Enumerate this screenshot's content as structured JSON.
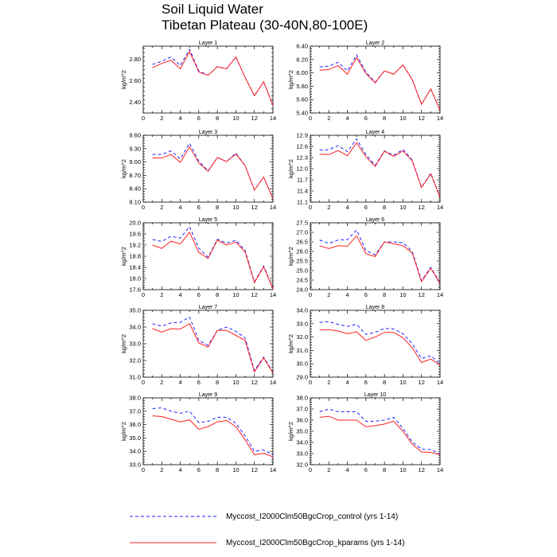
{
  "chart_data": {
    "type": "line",
    "title": [
      "Soil Liquid Water",
      "Tibetan Plateau (30-40N,80-100E)"
    ],
    "ylabel": "kg/m^2",
    "x": [
      1,
      2,
      3,
      4,
      5,
      6,
      7,
      8,
      9,
      10,
      11,
      12,
      13,
      14
    ],
    "xticks": [
      "0",
      "2",
      "4",
      "6",
      "8",
      "10",
      "12",
      "14"
    ],
    "xlim": [
      0,
      14
    ],
    "legend": {
      "placement": "bottom-center",
      "entries": [
        {
          "name": "Myccost_I2000Clm50BgcCrop_control (yrs 1-14)",
          "color": "#2020ff",
          "style": "dashed"
        },
        {
          "name": "Myccost_I2000Clm50BgcCrop_kparams (yrs 1-14)",
          "color": "#ff2020",
          "style": "solid"
        }
      ]
    },
    "panels": [
      {
        "title": "Layer 1",
        "ylim": [
          2.3,
          2.92
        ],
        "yticks": [
          "2.40",
          "2.60",
          "2.80"
        ],
        "ytick_values": [
          2.4,
          2.6,
          2.8
        ],
        "series": [
          {
            "name": "Myccost_I2000Clm50BgcCrop_control (yrs 1-14)",
            "values": [
              2.75,
              2.78,
              2.82,
              2.74,
              2.89,
              2.69,
              2.65,
              2.73,
              2.71,
              2.82,
              2.63,
              2.46,
              2.59,
              2.37
            ]
          },
          {
            "name": "Myccost_I2000Clm50BgcCrop_kparams (yrs 1-14)",
            "values": [
              2.72,
              2.76,
              2.79,
              2.71,
              2.87,
              2.68,
              2.65,
              2.73,
              2.71,
              2.82,
              2.63,
              2.46,
              2.59,
              2.37
            ]
          }
        ]
      },
      {
        "title": "Layer 2",
        "ylim": [
          5.4,
          6.4
        ],
        "yticks": [
          "5.40",
          "5.60",
          "5.80",
          "6.00",
          "6.20",
          "6.40"
        ],
        "ytick_values": [
          5.4,
          5.6,
          5.8,
          6.0,
          6.2,
          6.4
        ],
        "series": [
          {
            "name": "Myccost_I2000Clm50BgcCrop_control (yrs 1-14)",
            "values": [
              6.09,
              6.1,
              6.16,
              6.03,
              6.27,
              6.01,
              5.86,
              6.03,
              5.98,
              6.12,
              5.9,
              5.53,
              5.76,
              5.44
            ]
          },
          {
            "name": "Myccost_I2000Clm50BgcCrop_kparams (yrs 1-14)",
            "values": [
              6.04,
              6.05,
              6.11,
              5.98,
              6.23,
              5.99,
              5.85,
              6.03,
              5.98,
              6.12,
              5.9,
              5.53,
              5.76,
              5.44
            ]
          }
        ]
      },
      {
        "title": "Layer 3",
        "ylim": [
          8.1,
          9.6
        ],
        "yticks": [
          "8.10",
          "8.40",
          "8.70",
          "9.00",
          "9.30",
          "9.60"
        ],
        "ytick_values": [
          8.1,
          8.4,
          8.7,
          9.0,
          9.3,
          9.6
        ],
        "series": [
          {
            "name": "Myccost_I2000Clm50BgcCrop_control (yrs 1-14)",
            "values": [
              9.17,
              9.17,
              9.25,
              9.07,
              9.42,
              9.02,
              8.8,
              9.1,
              9.01,
              9.2,
              8.92,
              8.37,
              8.66,
              8.18
            ]
          },
          {
            "name": "Myccost_I2000Clm50BgcCrop_kparams (yrs 1-14)",
            "values": [
              9.09,
              9.09,
              9.17,
              8.99,
              9.34,
              8.98,
              8.79,
              9.1,
              9.01,
              9.18,
              8.92,
              8.37,
              8.66,
              8.18
            ]
          }
        ]
      },
      {
        "title": "Layer 4",
        "ylim": [
          11.1,
          12.9
        ],
        "yticks": [
          "11.1",
          "11.4",
          "11.7",
          "12.0",
          "12.3",
          "12.6",
          "12.9"
        ],
        "ytick_values": [
          11.1,
          11.4,
          11.7,
          12.0,
          12.3,
          12.6,
          12.9
        ],
        "series": [
          {
            "name": "Myccost_I2000Clm50BgcCrop_control (yrs 1-14)",
            "values": [
              12.5,
              12.51,
              12.62,
              12.46,
              12.8,
              12.38,
              12.09,
              12.48,
              12.36,
              12.52,
              12.23,
              11.5,
              11.88,
              11.23
            ]
          },
          {
            "name": "Myccost_I2000Clm50BgcCrop_kparams (yrs 1-14)",
            "values": [
              12.39,
              12.38,
              12.49,
              12.35,
              12.7,
              12.32,
              12.06,
              12.47,
              12.33,
              12.48,
              12.21,
              11.49,
              11.86,
              11.23
            ]
          }
        ]
      },
      {
        "title": "Layer 5",
        "ylim": [
          17.6,
          20.0
        ],
        "yticks": [
          "17.6",
          "18.0",
          "18.4",
          "18.8",
          "19.2",
          "19.6",
          "20.0"
        ],
        "ytick_values": [
          17.6,
          18.0,
          18.4,
          18.8,
          19.2,
          19.6,
          20.0
        ],
        "series": [
          {
            "name": "Myccost_I2000Clm50BgcCrop_control (yrs 1-14)",
            "values": [
              19.4,
              19.33,
              19.52,
              19.45,
              19.86,
              19.09,
              18.76,
              19.41,
              19.27,
              19.37,
              19.0,
              17.88,
              18.45,
              17.66
            ]
          },
          {
            "name": "Myccost_I2000Clm50BgcCrop_kparams (yrs 1-14)",
            "values": [
              19.2,
              19.08,
              19.34,
              19.24,
              19.66,
              18.94,
              18.72,
              19.38,
              19.2,
              19.31,
              18.95,
              17.85,
              18.42,
              17.63
            ]
          }
        ]
      },
      {
        "title": "Layer 6",
        "ylim": [
          24.0,
          27.5
        ],
        "yticks": [
          "24.0",
          "24.5",
          "25.0",
          "25.5",
          "26.0",
          "26.5",
          "27.0",
          "27.5"
        ],
        "ytick_values": [
          24.0,
          24.5,
          25.0,
          25.5,
          26.0,
          26.5,
          27.0,
          27.5
        ],
        "series": [
          {
            "name": "Myccost_I2000Clm50BgcCrop_control (yrs 1-14)",
            "values": [
              26.6,
              26.42,
              26.6,
              26.62,
              27.12,
              26.05,
              25.82,
              26.5,
              26.5,
              26.45,
              26.0,
              24.47,
              25.17,
              24.37
            ]
          },
          {
            "name": "Myccost_I2000Clm50BgcCrop_kparams (yrs 1-14)",
            "values": [
              26.3,
              26.15,
              26.3,
              26.27,
              26.82,
              25.88,
              25.73,
              26.5,
              26.4,
              26.3,
              25.92,
              24.42,
              25.12,
              24.33
            ]
          }
        ]
      },
      {
        "title": "Layer 7",
        "ylim": [
          31.0,
          35.0
        ],
        "yticks": [
          "31.0",
          "32.0",
          "33.0",
          "34.0",
          "35.0"
        ],
        "ytick_values": [
          31.0,
          32.0,
          33.0,
          34.0,
          35.0
        ],
        "series": [
          {
            "name": "Myccost_I2000Clm50BgcCrop_control (yrs 1-14)",
            "values": [
              34.2,
              34.05,
              34.25,
              34.28,
              34.6,
              33.2,
              32.9,
              33.8,
              34.0,
              33.75,
              33.35,
              31.4,
              32.2,
              31.3
            ]
          },
          {
            "name": "Myccost_I2000Clm50BgcCrop_kparams (yrs 1-14)",
            "values": [
              33.9,
              33.7,
              33.9,
              33.88,
              34.2,
              33.05,
              32.8,
              33.8,
              33.8,
              33.5,
              33.2,
              31.32,
              32.15,
              31.25
            ]
          }
        ]
      },
      {
        "title": "Layer 8",
        "ylim": [
          29.0,
          34.0
        ],
        "yticks": [
          "29.0",
          "30.0",
          "31.0",
          "32.0",
          "33.0",
          "34.0"
        ],
        "ytick_values": [
          29.0,
          30.0,
          31.0,
          32.0,
          33.0,
          34.0
        ],
        "series": [
          {
            "name": "Myccost_I2000Clm50BgcCrop_control (yrs 1-14)",
            "values": [
              33.1,
              33.15,
              32.95,
              32.8,
              32.95,
              32.2,
              32.35,
              32.65,
              32.6,
              32.25,
              31.5,
              30.4,
              30.6,
              30.0
            ]
          },
          {
            "name": "Myccost_I2000Clm50BgcCrop_kparams (yrs 1-14)",
            "values": [
              32.55,
              32.55,
              32.45,
              32.25,
              32.4,
              31.75,
              32.0,
              32.35,
              32.35,
              31.95,
              31.2,
              30.1,
              30.35,
              29.9
            ]
          }
        ]
      },
      {
        "title": "Layer 9",
        "ylim": [
          33.0,
          38.0
        ],
        "yticks": [
          "33.0",
          "34.0",
          "35.0",
          "36.0",
          "37.0",
          "38.0"
        ],
        "ytick_values": [
          33.0,
          34.0,
          35.0,
          36.0,
          37.0,
          38.0
        ],
        "series": [
          {
            "name": "Myccost_I2000Clm50BgcCrop_control (yrs 1-14)",
            "values": [
              37.2,
              37.25,
              37.0,
              36.85,
              37.0,
              36.15,
              36.25,
              36.55,
              36.55,
              36.1,
              35.15,
              34.0,
              34.1,
              33.75
            ]
          },
          {
            "name": "Myccost_I2000Clm50BgcCrop_kparams (yrs 1-14)",
            "values": [
              36.65,
              36.6,
              36.4,
              36.2,
              36.35,
              35.65,
              35.85,
              36.2,
              36.3,
              35.85,
              34.85,
              33.75,
              33.85,
              33.6
            ]
          }
        ]
      },
      {
        "title": "Layer 10",
        "ylim": [
          32.0,
          38.0
        ],
        "yticks": [
          "32.0",
          "33.0",
          "34.0",
          "35.0",
          "36.0",
          "37.0",
          "38.0"
        ],
        "ytick_values": [
          32.0,
          33.0,
          34.0,
          35.0,
          36.0,
          37.0,
          38.0
        ],
        "series": [
          {
            "name": "Myccost_I2000Clm50BgcCrop_control (yrs 1-14)",
            "values": [
              36.75,
              37.0,
              36.75,
              36.75,
              36.75,
              35.9,
              35.9,
              36.0,
              36.25,
              35.25,
              34.05,
              33.4,
              33.35,
              32.95
            ]
          },
          {
            "name": "Myccost_I2000Clm50BgcCrop_kparams (yrs 1-14)",
            "values": [
              36.25,
              36.35,
              36.0,
              36.0,
              36.0,
              35.4,
              35.5,
              35.65,
              35.9,
              35.0,
              33.85,
              33.15,
              33.1,
              32.9
            ]
          }
        ]
      }
    ]
  }
}
